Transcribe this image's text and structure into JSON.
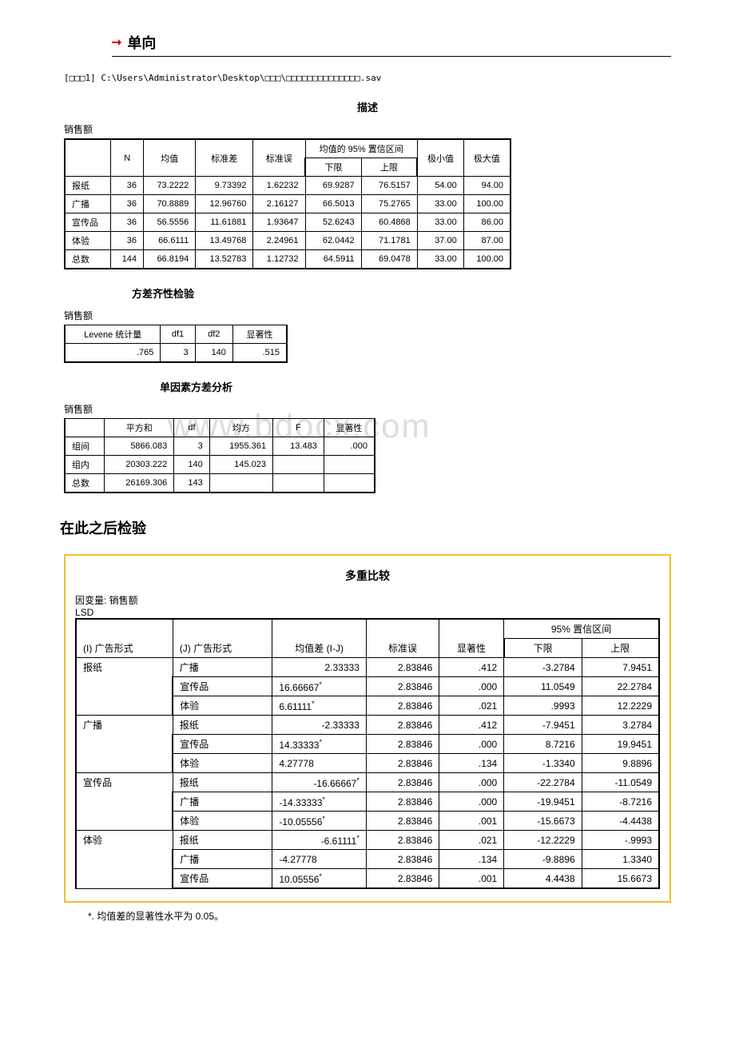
{
  "header": {
    "title": "单向"
  },
  "file_path": "[□□□1] C:\\Users\\Administrator\\Desktop\\□□□\\□□□□□□□□□□□□□□.sav",
  "desc_table": {
    "title": "描述",
    "subtitle": "销售额",
    "col_headers": {
      "n": "N",
      "mean": "均值",
      "std": "标准差",
      "se": "标准误",
      "ci": "均值的 95% 置信区间",
      "lower": "下限",
      "upper": "上限",
      "min": "极小值",
      "max": "极大值"
    },
    "rows": [
      {
        "label": "报纸",
        "n": "36",
        "mean": "73.2222",
        "std": "9.73392",
        "se": "1.62232",
        "lower": "69.9287",
        "upper": "76.5157",
        "min": "54.00",
        "max": "94.00"
      },
      {
        "label": "广播",
        "n": "36",
        "mean": "70.8889",
        "std": "12.96760",
        "se": "2.16127",
        "lower": "66.5013",
        "upper": "75.2765",
        "min": "33.00",
        "max": "100.00"
      },
      {
        "label": "宣传品",
        "n": "36",
        "mean": "56.5556",
        "std": "11.61881",
        "se": "1.93647",
        "lower": "52.6243",
        "upper": "60.4868",
        "min": "33.00",
        "max": "86.00"
      },
      {
        "label": "体验",
        "n": "36",
        "mean": "66.6111",
        "std": "13.49768",
        "se": "2.24961",
        "lower": "62.0442",
        "upper": "71.1781",
        "min": "37.00",
        "max": "87.00"
      },
      {
        "label": "总数",
        "n": "144",
        "mean": "66.8194",
        "std": "13.52783",
        "se": "1.12732",
        "lower": "64.5911",
        "upper": "69.0478",
        "min": "33.00",
        "max": "100.00"
      }
    ]
  },
  "levene_table": {
    "title": "方差齐性检验",
    "subtitle": "销售额",
    "headers": {
      "stat": "Levene 统计量",
      "df1": "df1",
      "df2": "df2",
      "sig": "显著性"
    },
    "row": {
      "stat": ".765",
      "df1": "3",
      "df2": "140",
      "sig": ".515"
    }
  },
  "anova_table": {
    "title": "单因素方差分析",
    "subtitle": "销售额",
    "headers": {
      "ss": "平方和",
      "df": "df",
      "ms": "均方",
      "f": "F",
      "sig": "显著性"
    },
    "rows": [
      {
        "label": "组间",
        "ss": "5866.083",
        "df": "3",
        "ms": "1955.361",
        "f": "13.483",
        "sig": ".000"
      },
      {
        "label": "组内",
        "ss": "20303.222",
        "df": "140",
        "ms": "145.023",
        "f": "",
        "sig": ""
      },
      {
        "label": "总数",
        "ss": "26169.306",
        "df": "143",
        "ms": "",
        "f": "",
        "sig": ""
      }
    ]
  },
  "watermark": "www.bdocx.com",
  "posthoc": {
    "section_title": "在此之后检验",
    "box_title": "多重比较",
    "dep_var": "因变量: 销售额",
    "method": "LSD",
    "headers": {
      "i": "(I) 广告形式",
      "j": "(J) 广告形式",
      "diff": "均值差 (I-J)",
      "se": "标准误",
      "sig": "显著性",
      "ci": "95% 置信区间",
      "lower": "下限",
      "upper": "上限"
    },
    "groups": [
      {
        "i": "报纸",
        "rows": [
          {
            "j": "广播",
            "diff": "2.33333",
            "star": false,
            "se": "2.83846",
            "sig": ".412",
            "lower": "-3.2784",
            "upper": "7.9451"
          },
          {
            "j": "宣传品",
            "diff": "16.66667",
            "star": true,
            "se": "2.83846",
            "sig": ".000",
            "lower": "11.0549",
            "upper": "22.2784"
          },
          {
            "j": "体验",
            "diff": "6.61111",
            "star": true,
            "se": "2.83846",
            "sig": ".021",
            "lower": ".9993",
            "upper": "12.2229"
          }
        ]
      },
      {
        "i": "广播",
        "rows": [
          {
            "j": "报纸",
            "diff": "-2.33333",
            "star": false,
            "se": "2.83846",
            "sig": ".412",
            "lower": "-7.9451",
            "upper": "3.2784"
          },
          {
            "j": "宣传品",
            "diff": "14.33333",
            "star": true,
            "se": "2.83846",
            "sig": ".000",
            "lower": "8.7216",
            "upper": "19.9451"
          },
          {
            "j": "体验",
            "diff": "4.27778",
            "star": false,
            "se": "2.83846",
            "sig": ".134",
            "lower": "-1.3340",
            "upper": "9.8896"
          }
        ]
      },
      {
        "i": "宣传品",
        "rows": [
          {
            "j": "报纸",
            "diff": "-16.66667",
            "star": true,
            "se": "2.83846",
            "sig": ".000",
            "lower": "-22.2784",
            "upper": "-11.0549"
          },
          {
            "j": "广播",
            "diff": "-14.33333",
            "star": true,
            "se": "2.83846",
            "sig": ".000",
            "lower": "-19.9451",
            "upper": "-8.7216"
          },
          {
            "j": "体验",
            "diff": "-10.05556",
            "star": true,
            "se": "2.83846",
            "sig": ".001",
            "lower": "-15.6673",
            "upper": "-4.4438"
          }
        ]
      },
      {
        "i": "体验",
        "rows": [
          {
            "j": "报纸",
            "diff": "-6.61111",
            "star": true,
            "se": "2.83846",
            "sig": ".021",
            "lower": "-12.2229",
            "upper": "-.9993"
          },
          {
            "j": "广播",
            "diff": "-4.27778",
            "star": false,
            "se": "2.83846",
            "sig": ".134",
            "lower": "-9.8896",
            "upper": "1.3340"
          },
          {
            "j": "宣传品",
            "diff": "10.05556",
            "star": true,
            "se": "2.83846",
            "sig": ".001",
            "lower": "4.4438",
            "upper": "15.6673"
          }
        ]
      }
    ],
    "footnote": "*. 均值差的显著性水平为 0.05。"
  }
}
